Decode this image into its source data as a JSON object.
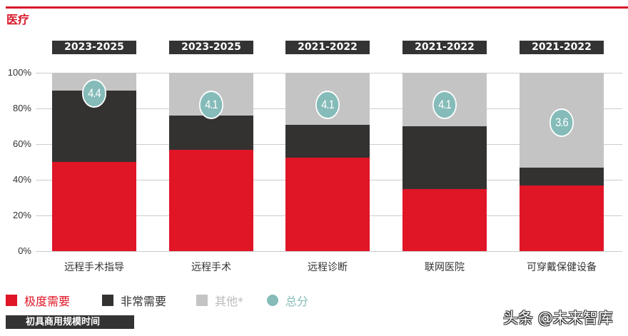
{
  "header": {
    "title": "医疗"
  },
  "colors": {
    "extremely_needed": "#e01526",
    "very_needed": "#333231",
    "other": "#c4c4c4",
    "total_score": "#85bbb9",
    "accent": "#d7182a"
  },
  "chart_data": {
    "type": "bar",
    "stacked": true,
    "title": "医疗",
    "categories": [
      "远程手术指导",
      "远程手术",
      "远程诊断",
      "联网医院",
      "可穿戴保健设备"
    ],
    "commercial_time": [
      "2023-2025",
      "2023-2025",
      "2021-2022",
      "2021-2022",
      "2021-2022"
    ],
    "series": [
      {
        "name": "极度需要",
        "values": [
          50,
          57,
          52.5,
          35,
          37
        ]
      },
      {
        "name": "非常需要",
        "values": [
          40,
          19,
          18.5,
          35,
          10
        ]
      },
      {
        "name": "其他*",
        "values": [
          10,
          24,
          29,
          30,
          53
        ]
      }
    ],
    "total_score": {
      "name": "总分",
      "values": [
        "4.4",
        "4.1",
        "4.1",
        "4.1",
        "3.6"
      ]
    },
    "yticks": [
      "100%",
      "80%",
      "60%",
      "40%",
      "20%",
      "0%"
    ],
    "ylim": [
      0,
      100
    ],
    "xlabel": "",
    "ylabel": "",
    "grid": true,
    "legend_position": "bottom"
  },
  "legend": {
    "items": [
      {
        "label": "极度需要"
      },
      {
        "label": "非常需要"
      },
      {
        "label": "其他*"
      },
      {
        "label": "总分"
      }
    ]
  },
  "footer": {
    "badge": "初具商用规模时间"
  },
  "watermark": "头条 @未来智库"
}
